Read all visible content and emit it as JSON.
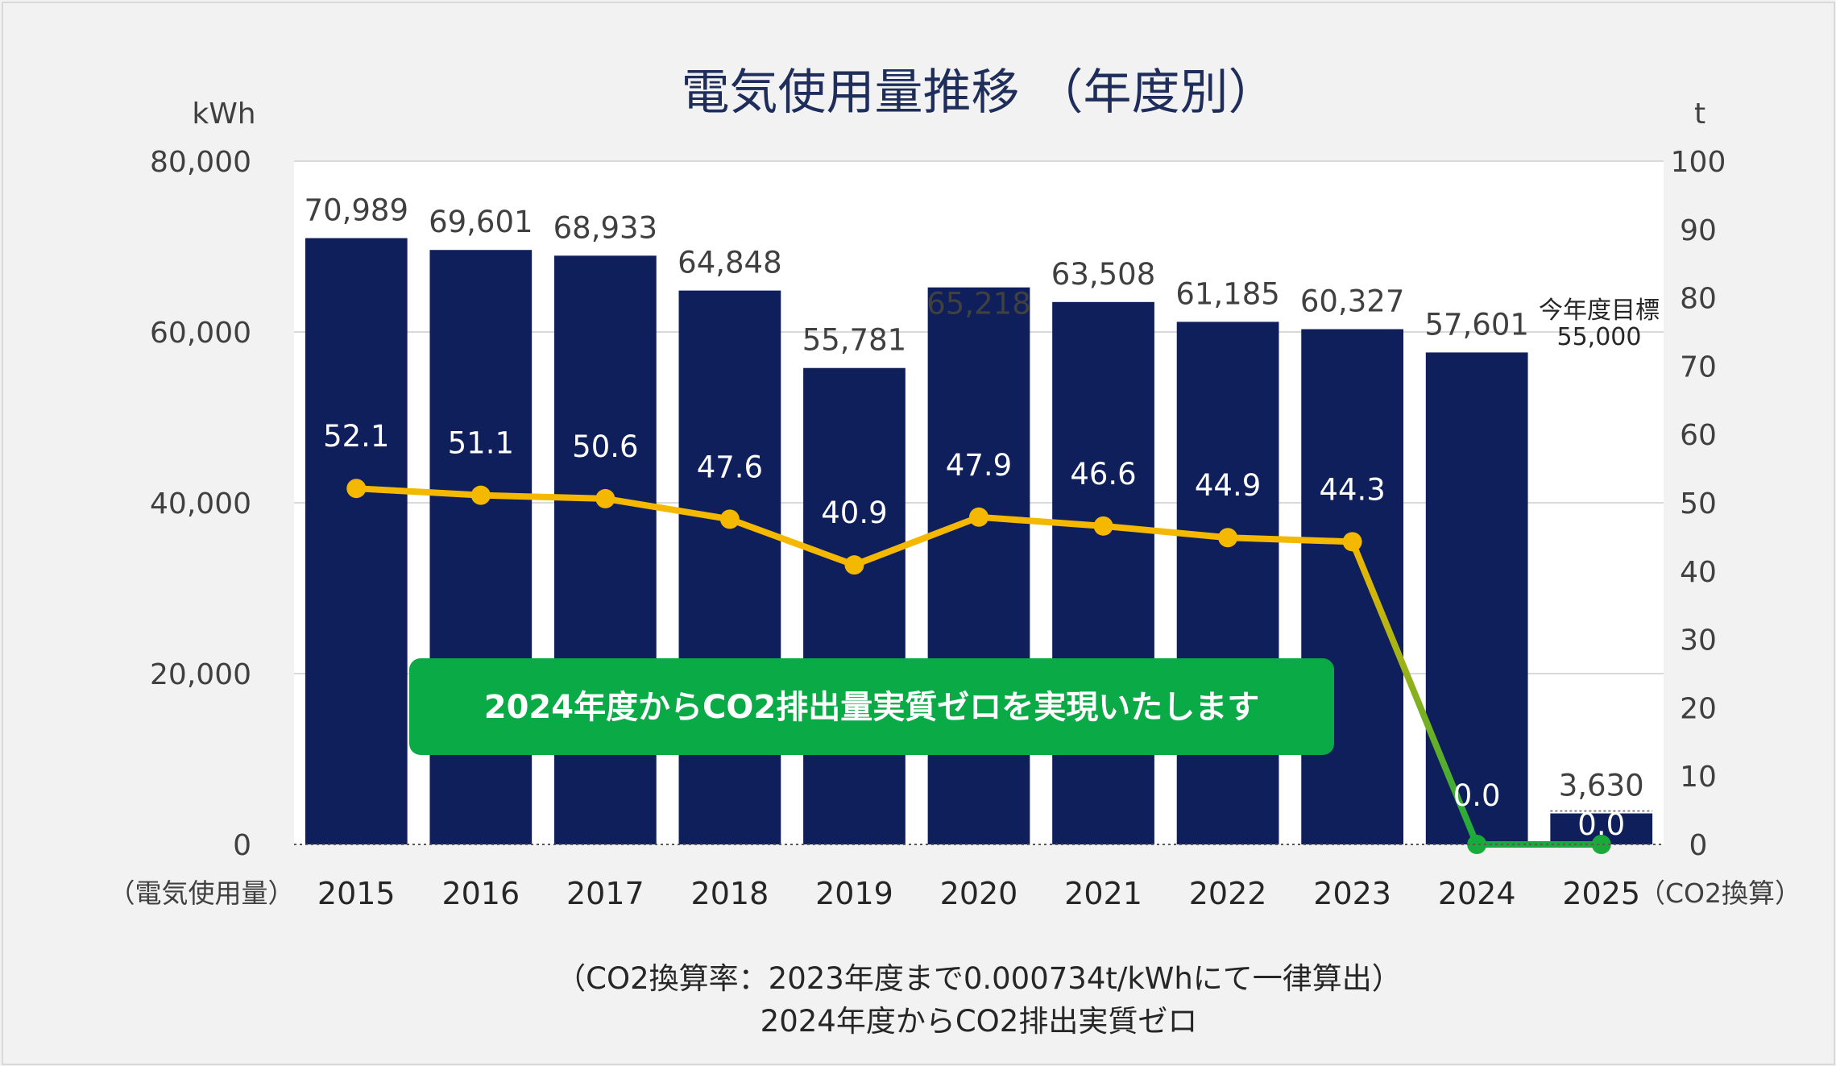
{
  "chart_data": {
    "type": "bar",
    "title": "電気使用量推移 （年度別）",
    "y_left_unit": "kWh",
    "y_right_unit": "t",
    "x_left_label": "（電気使用量）",
    "x_right_label": "（CO2換算）",
    "ylim_left": [
      0,
      80000
    ],
    "ylim_right": [
      0,
      100
    ],
    "left_ticks": [
      "0",
      "20,000",
      "40,000",
      "60,000",
      "80,000"
    ],
    "right_ticks": [
      "0",
      "10",
      "20",
      "30",
      "40",
      "50",
      "60",
      "70",
      "80",
      "90",
      "100"
    ],
    "categories": [
      "2015",
      "2016",
      "2017",
      "2018",
      "2019",
      "2020",
      "2021",
      "2022",
      "2023",
      "2024",
      "2025"
    ],
    "series": [
      {
        "type": "bar",
        "axis": "left",
        "color": "#0e1f5b",
        "values": [
          70989,
          69601,
          68933,
          64848,
          55781,
          65218,
          63508,
          61185,
          60327,
          57601,
          3630
        ],
        "labels": [
          "70,989",
          "69,601",
          "68,933",
          "64,848",
          "55,781",
          "65,218",
          "63,508",
          "61,185",
          "60,327",
          "57,601",
          "3,630"
        ]
      },
      {
        "type": "line",
        "axis": "right",
        "color": "#f5b800",
        "color_after_2023": "#1aaa3c",
        "values": [
          52.1,
          51.1,
          50.6,
          47.6,
          40.9,
          47.9,
          46.6,
          44.9,
          44.3,
          0.0,
          0.0
        ],
        "labels": [
          "52.1",
          "51.1",
          "50.6",
          "47.6",
          "40.9",
          "47.9",
          "46.6",
          "44.9",
          "44.3",
          "0.0",
          "0.0"
        ]
      }
    ],
    "target": {
      "label": "今年度目標",
      "value_label": "55,000",
      "value": 55000
    },
    "annotation": "2024年度からCO2排出量実質ゼロを実現いたします",
    "grid": true
  },
  "footnote": {
    "line1": "（CO2換算率：2023年度まで0.000734t/kWhにて一律算出）",
    "line2": "2024年度からCO2排出実質ゼロ"
  },
  "colors": {
    "banner": "#0aaa46",
    "plot_bg": "#ffffff",
    "page_bg": "#f2f2f2"
  }
}
